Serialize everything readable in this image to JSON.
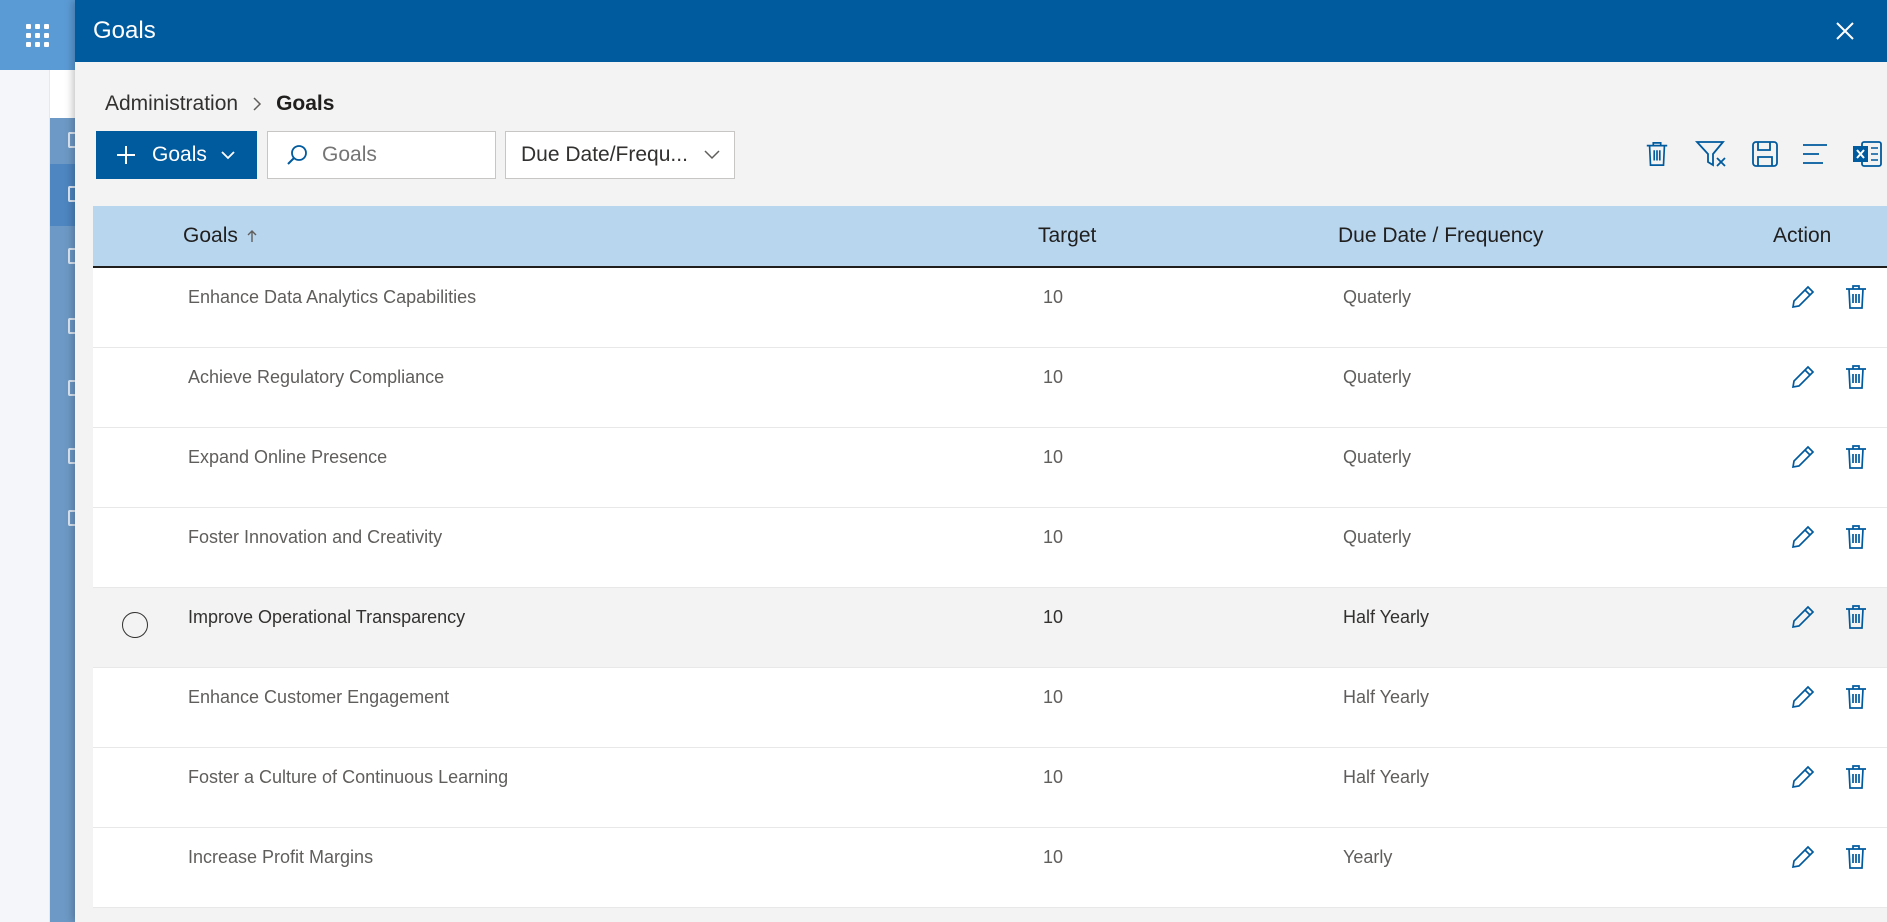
{
  "panel": {
    "title": "Goals",
    "close_icon": "close-icon"
  },
  "breadcrumb": {
    "items": [
      "Administration",
      "Goals"
    ]
  },
  "toolbar": {
    "add_label": "Goals",
    "search_placeholder": "Goals",
    "filter_dropdown": "Due Date/Frequ..."
  },
  "command_icons": [
    "delete-icon",
    "clear-filter-icon",
    "save-icon",
    "column-options-icon",
    "excel-export-icon"
  ],
  "table": {
    "columns": [
      "Goals",
      "Target",
      "Due Date / Frequency",
      "Action"
    ],
    "sort": "ascending",
    "rows": [
      {
        "goal": "Enhance Data Analytics Capabilities",
        "target": "10",
        "due": "Quaterly",
        "selected": false
      },
      {
        "goal": "Achieve Regulatory Compliance",
        "target": "10",
        "due": "Quaterly",
        "selected": false
      },
      {
        "goal": "Expand Online Presence",
        "target": "10",
        "due": "Quaterly",
        "selected": false
      },
      {
        "goal": "Foster Innovation and Creativity",
        "target": "10",
        "due": "Quaterly",
        "selected": false
      },
      {
        "goal": "Improve Operational Transparency",
        "target": "10",
        "due": "Half Yearly",
        "selected": true
      },
      {
        "goal": "Enhance Customer Engagement",
        "target": "10",
        "due": "Half Yearly",
        "selected": false
      },
      {
        "goal": "Foster a Culture of Continuous Learning",
        "target": "10",
        "due": "Half Yearly",
        "selected": false
      },
      {
        "goal": "Increase Profit Margins",
        "target": "10",
        "due": "Yearly",
        "selected": false
      }
    ]
  },
  "colors": {
    "header": "#005a9e",
    "table_header": "#b9d6ef",
    "icon": "#005a9e"
  }
}
